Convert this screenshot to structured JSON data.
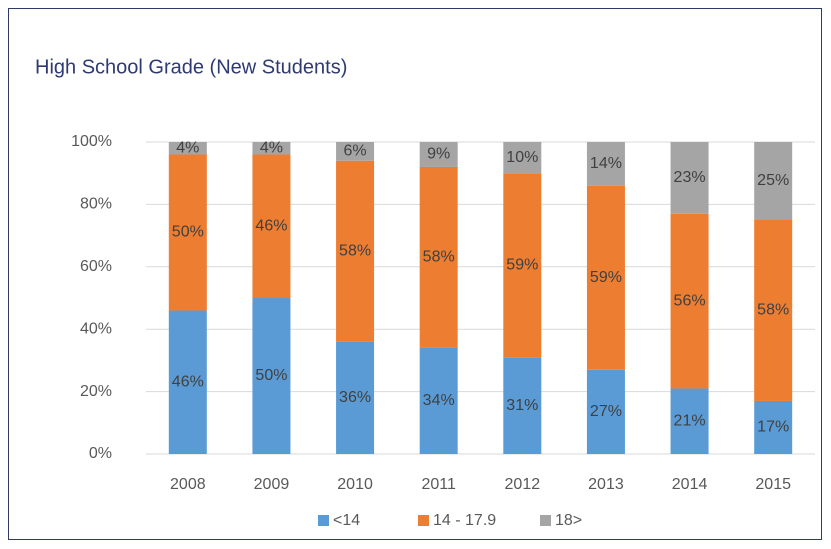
{
  "chart_data": {
    "type": "stacked_bar",
    "title": "High School Grade (New Students)",
    "categories": [
      "2008",
      "2009",
      "2010",
      "2011",
      "2012",
      "2013",
      "2014",
      "2015"
    ],
    "series": [
      {
        "name": "<14",
        "color": "#5b9bd5",
        "values": [
          46,
          50,
          36,
          34,
          31,
          27,
          21,
          17
        ],
        "value_labels": [
          "46%",
          "50%",
          "36%",
          "34%",
          "31%",
          "27%",
          "21%",
          "17%"
        ]
      },
      {
        "name": "14 - 17.9",
        "color": "#ed7d31",
        "values": [
          50,
          46,
          58,
          58,
          59,
          59,
          56,
          58
        ],
        "value_labels": [
          "50%",
          "46%",
          "58%",
          "58%",
          "59%",
          "59%",
          "56%",
          "58%"
        ]
      },
      {
        "name": "18>",
        "color": "#a5a5a5",
        "values": [
          4,
          4,
          6,
          9,
          10,
          14,
          23,
          25
        ],
        "value_labels": [
          "4%",
          "4%",
          "6%",
          "9%",
          "10%",
          "14%",
          "23%",
          "25%"
        ]
      }
    ],
    "ylim": [
      0,
      100
    ],
    "yticks": [
      {
        "value": 0,
        "label": "0%"
      },
      {
        "value": 20,
        "label": "20%"
      },
      {
        "value": 40,
        "label": "40%"
      },
      {
        "value": 60,
        "label": "60%"
      },
      {
        "value": 80,
        "label": "80%"
      },
      {
        "value": 100,
        "label": "100%"
      }
    ],
    "grid": true,
    "legend": "bottom"
  }
}
